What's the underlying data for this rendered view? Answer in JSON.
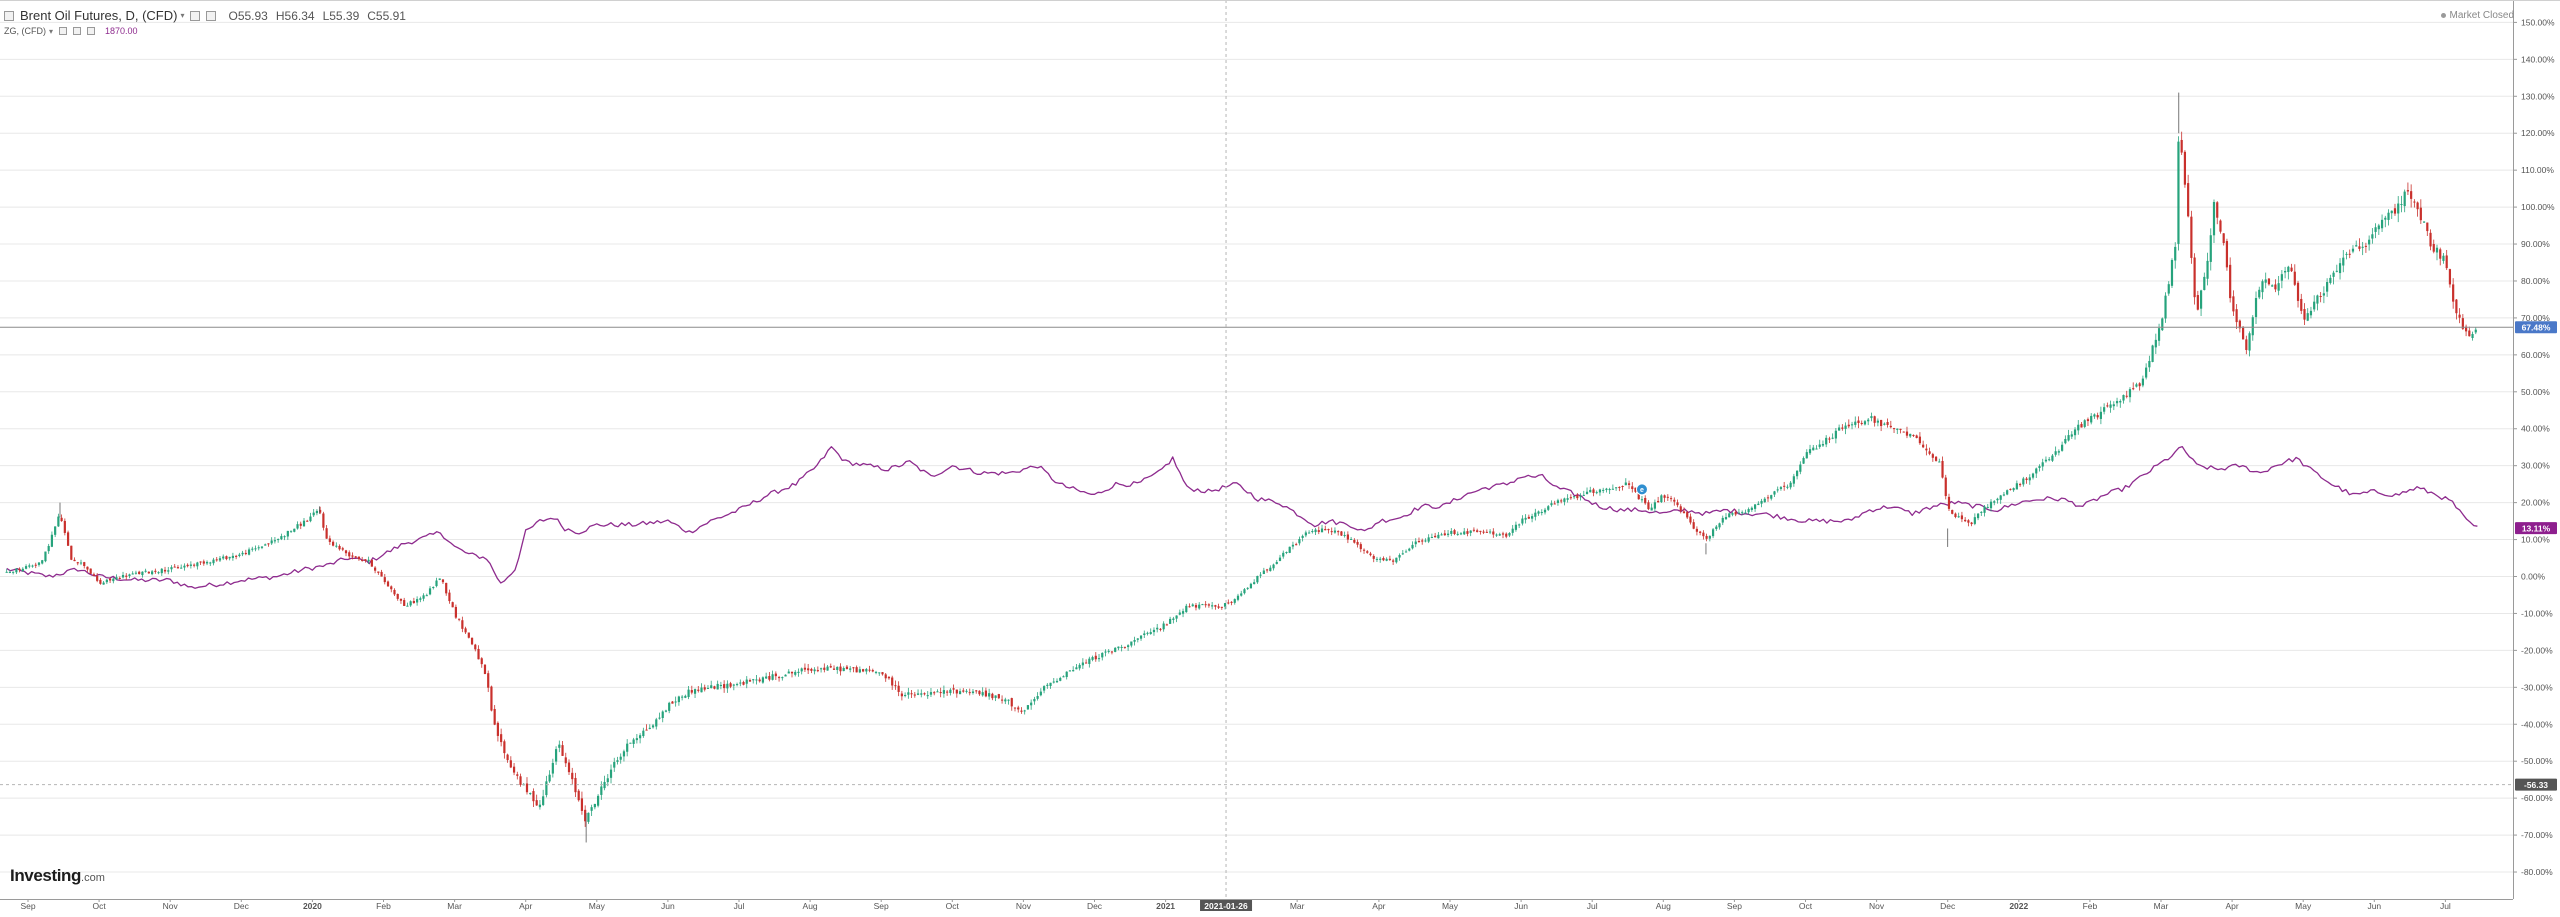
{
  "header": {
    "symbol": "Brent Oil Futures, D, (CFD)",
    "open": "O55.93",
    "high": "H56.34",
    "low": "L55.39",
    "close": "C55.91",
    "compare_symbol": "ZG, (CFD)",
    "compare_value": "1870.00"
  },
  "market_status": "Market Closed",
  "logo": {
    "name": "Investing",
    "suffix": ".com"
  },
  "colors": {
    "up": "#26a37c",
    "down": "#c9302c",
    "compare_line": "#8e2b8e",
    "last_badge": "#4a78c8",
    "compare_badge": "#8e1f8e",
    "crosshair_badge": "#555555",
    "grid": "#e8e8e8"
  },
  "crosshair": {
    "date_label": "2021-01-26",
    "value_label": "-56.33"
  },
  "price_badges": {
    "last_value": "67.48%",
    "compare_value": "13.11%"
  },
  "chart_data": {
    "type": "line",
    "title": "Brent Oil Futures, D, (CFD)",
    "xlabel": "",
    "ylabel": "",
    "y_unit": "%",
    "ylim": [
      -86,
      155
    ],
    "grid": true,
    "legend_position": "top-left",
    "y_ticks": [
      {
        "v": 150,
        "label": "150.00%"
      },
      {
        "v": 140,
        "label": "140.00%"
      },
      {
        "v": 130,
        "label": "130.00%"
      },
      {
        "v": 120,
        "label": "120.00%"
      },
      {
        "v": 110,
        "label": "110.00%"
      },
      {
        "v": 100,
        "label": "100.00%"
      },
      {
        "v": 90,
        "label": "90.00%"
      },
      {
        "v": 80,
        "label": "80.00%"
      },
      {
        "v": 70,
        "label": "70.00%"
      },
      {
        "v": 60,
        "label": "60.00%"
      },
      {
        "v": 50,
        "label": "50.00%"
      },
      {
        "v": 40,
        "label": "40.00%"
      },
      {
        "v": 30,
        "label": "30.00%"
      },
      {
        "v": 20,
        "label": "20.00%"
      },
      {
        "v": 10,
        "label": "10.00%"
      },
      {
        "v": 0,
        "label": "0.00%"
      },
      {
        "v": -10,
        "label": "-10.00%"
      },
      {
        "v": -20,
        "label": "-20.00%"
      },
      {
        "v": -30,
        "label": "-30.00%"
      },
      {
        "v": -40,
        "label": "-40.00%"
      },
      {
        "v": -50,
        "label": "-50.00%"
      },
      {
        "v": -60,
        "label": "-60.00%"
      },
      {
        "v": -70,
        "label": "-70.00%"
      },
      {
        "v": -80,
        "label": "-80.00%"
      }
    ],
    "x_ticks": [
      {
        "m": 0.0,
        "label": "Sep"
      },
      {
        "m": 1.0,
        "label": "Oct"
      },
      {
        "m": 2.0,
        "label": "Nov"
      },
      {
        "m": 3.0,
        "label": "Dec"
      },
      {
        "m": 4.0,
        "label": "2020",
        "bold": true
      },
      {
        "m": 5.0,
        "label": "Feb"
      },
      {
        "m": 6.0,
        "label": "Mar"
      },
      {
        "m": 7.0,
        "label": "Apr"
      },
      {
        "m": 8.0,
        "label": "May"
      },
      {
        "m": 9.0,
        "label": "Jun"
      },
      {
        "m": 10.0,
        "label": "Jul"
      },
      {
        "m": 11.0,
        "label": "Aug"
      },
      {
        "m": 12.0,
        "label": "Sep"
      },
      {
        "m": 13.0,
        "label": "Oct"
      },
      {
        "m": 14.0,
        "label": "Nov"
      },
      {
        "m": 15.0,
        "label": "Dec"
      },
      {
        "m": 16.0,
        "label": "2021",
        "bold": true
      },
      {
        "m": 17.85,
        "label": "Mar"
      },
      {
        "m": 19.0,
        "label": "Apr"
      },
      {
        "m": 20.0,
        "label": "May"
      },
      {
        "m": 21.0,
        "label": "Jun"
      },
      {
        "m": 22.0,
        "label": "Jul"
      },
      {
        "m": 23.0,
        "label": "Aug"
      },
      {
        "m": 24.0,
        "label": "Sep"
      },
      {
        "m": 25.0,
        "label": "Oct"
      },
      {
        "m": 26.0,
        "label": "Nov"
      },
      {
        "m": 27.0,
        "label": "Dec"
      },
      {
        "m": 28.0,
        "label": "2022",
        "bold": true
      },
      {
        "m": 29.0,
        "label": "Feb"
      },
      {
        "m": 30.0,
        "label": "Mar"
      },
      {
        "m": 31.0,
        "label": "Apr"
      },
      {
        "m": 32.0,
        "label": "May"
      },
      {
        "m": 33.0,
        "label": "Jun"
      },
      {
        "m": 34.0,
        "label": "Jul"
      }
    ],
    "x_range": [
      -0.3,
      34.5
    ],
    "crosshair_x": 16.85,
    "crosshair_y": -56.33,
    "last_value": 67.48,
    "series": [
      {
        "name": "Brent Oil Futures, D, (CFD)",
        "style": "candlestick",
        "points": [
          [
            -0.3,
            1
          ],
          [
            0.2,
            4
          ],
          [
            0.45,
            17
          ],
          [
            0.6,
            5
          ],
          [
            0.8,
            3
          ],
          [
            1.0,
            -2
          ],
          [
            1.3,
            0
          ],
          [
            1.6,
            1
          ],
          [
            2.0,
            2
          ],
          [
            2.5,
            4
          ],
          [
            3.0,
            6
          ],
          [
            3.5,
            10
          ],
          [
            3.9,
            15
          ],
          [
            4.1,
            18
          ],
          [
            4.2,
            10
          ],
          [
            4.5,
            6
          ],
          [
            4.8,
            4
          ],
          [
            5.0,
            -1
          ],
          [
            5.3,
            -8
          ],
          [
            5.6,
            -5
          ],
          [
            5.8,
            0
          ],
          [
            6.0,
            -10
          ],
          [
            6.3,
            -20
          ],
          [
            6.45,
            -28
          ],
          [
            6.55,
            -40
          ],
          [
            6.75,
            -50
          ],
          [
            7.0,
            -58
          ],
          [
            7.2,
            -62
          ],
          [
            7.45,
            -45
          ],
          [
            7.7,
            -58
          ],
          [
            7.85,
            -66
          ],
          [
            8.0,
            -60
          ],
          [
            8.2,
            -52
          ],
          [
            8.5,
            -44
          ],
          [
            8.8,
            -40
          ],
          [
            9.0,
            -35
          ],
          [
            9.3,
            -31
          ],
          [
            9.6,
            -30
          ],
          [
            10.0,
            -29
          ],
          [
            10.5,
            -27
          ],
          [
            11.0,
            -25
          ],
          [
            11.5,
            -25
          ],
          [
            12.0,
            -26
          ],
          [
            12.3,
            -32
          ],
          [
            12.6,
            -32
          ],
          [
            13.0,
            -31
          ],
          [
            13.3,
            -31
          ],
          [
            13.8,
            -34
          ],
          [
            14.0,
            -37
          ],
          [
            14.3,
            -30
          ],
          [
            14.6,
            -26
          ],
          [
            15.0,
            -22
          ],
          [
            15.5,
            -18
          ],
          [
            16.0,
            -13
          ],
          [
            16.3,
            -8
          ],
          [
            16.8,
            -8
          ],
          [
            17.0,
            -6
          ],
          [
            17.3,
            0
          ],
          [
            17.6,
            5
          ],
          [
            18.0,
            12
          ],
          [
            18.3,
            13
          ],
          [
            18.6,
            10
          ],
          [
            18.9,
            5
          ],
          [
            19.2,
            4
          ],
          [
            19.5,
            9
          ],
          [
            20.0,
            12
          ],
          [
            20.5,
            12
          ],
          [
            20.8,
            11
          ],
          [
            21.0,
            15
          ],
          [
            21.5,
            20
          ],
          [
            22.0,
            23
          ],
          [
            22.5,
            25
          ],
          [
            22.8,
            18
          ],
          [
            23.0,
            22
          ],
          [
            23.2,
            19
          ],
          [
            23.4,
            14
          ],
          [
            23.6,
            10
          ],
          [
            23.9,
            17
          ],
          [
            24.2,
            18
          ],
          [
            24.5,
            22
          ],
          [
            24.8,
            25
          ],
          [
            25.0,
            33
          ],
          [
            25.5,
            40
          ],
          [
            25.9,
            43
          ],
          [
            26.2,
            40
          ],
          [
            26.6,
            37
          ],
          [
            26.9,
            30
          ],
          [
            27.0,
            18
          ],
          [
            27.3,
            14
          ],
          [
            27.6,
            20
          ],
          [
            28.0,
            25
          ],
          [
            28.5,
            33
          ],
          [
            28.8,
            40
          ],
          [
            29.2,
            45
          ],
          [
            29.7,
            52
          ],
          [
            30.0,
            68
          ],
          [
            30.2,
            90
          ],
          [
            30.25,
            120
          ],
          [
            30.35,
            105
          ],
          [
            30.5,
            70
          ],
          [
            30.65,
            85
          ],
          [
            30.75,
            102
          ],
          [
            30.9,
            88
          ],
          [
            31.0,
            72
          ],
          [
            31.2,
            62
          ],
          [
            31.4,
            80
          ],
          [
            31.6,
            78
          ],
          [
            31.8,
            85
          ],
          [
            32.0,
            70
          ],
          [
            32.3,
            78
          ],
          [
            32.6,
            88
          ],
          [
            32.9,
            90
          ],
          [
            33.1,
            97
          ],
          [
            33.3,
            98
          ],
          [
            33.45,
            105
          ],
          [
            33.6,
            100
          ],
          [
            33.8,
            90
          ],
          [
            34.0,
            85
          ],
          [
            34.1,
            75
          ],
          [
            34.3,
            65
          ],
          [
            34.45,
            67.48
          ]
        ]
      },
      {
        "name": "ZG, (CFD)",
        "style": "line",
        "points": [
          [
            -0.3,
            2
          ],
          [
            0.3,
            0
          ],
          [
            0.7,
            2
          ],
          [
            1.0,
            0
          ],
          [
            1.5,
            -1
          ],
          [
            2.0,
            -1
          ],
          [
            2.3,
            -3
          ],
          [
            2.7,
            -2
          ],
          [
            3.0,
            -1
          ],
          [
            3.5,
            0
          ],
          [
            3.9,
            2
          ],
          [
            4.2,
            3
          ],
          [
            4.5,
            5
          ],
          [
            4.8,
            4
          ],
          [
            5.0,
            6
          ],
          [
            5.3,
            9
          ],
          [
            5.5,
            10
          ],
          [
            5.8,
            12
          ],
          [
            6.0,
            8
          ],
          [
            6.2,
            6
          ],
          [
            6.45,
            5
          ],
          [
            6.65,
            -2
          ],
          [
            6.85,
            2
          ],
          [
            7.0,
            12
          ],
          [
            7.2,
            15
          ],
          [
            7.4,
            16
          ],
          [
            7.55,
            13
          ],
          [
            7.75,
            12
          ],
          [
            8.0,
            14
          ],
          [
            8.5,
            14
          ],
          [
            9.0,
            15
          ],
          [
            9.3,
            12
          ],
          [
            9.6,
            15
          ],
          [
            10.0,
            18
          ],
          [
            10.4,
            22
          ],
          [
            10.8,
            25
          ],
          [
            11.1,
            30
          ],
          [
            11.3,
            35
          ],
          [
            11.5,
            31
          ],
          [
            11.8,
            30
          ],
          [
            12.1,
            29
          ],
          [
            12.4,
            31
          ],
          [
            12.7,
            27
          ],
          [
            13.0,
            30
          ],
          [
            13.4,
            28
          ],
          [
            13.8,
            28
          ],
          [
            14.2,
            30
          ],
          [
            14.5,
            25
          ],
          [
            14.8,
            23
          ],
          [
            15.0,
            22
          ],
          [
            15.3,
            25
          ],
          [
            15.6,
            25
          ],
          [
            15.9,
            28
          ],
          [
            16.1,
            32
          ],
          [
            16.3,
            24
          ],
          [
            16.6,
            23
          ],
          [
            17.0,
            25
          ],
          [
            17.3,
            21
          ],
          [
            17.6,
            20
          ],
          [
            17.85,
            17
          ],
          [
            18.1,
            14
          ],
          [
            18.3,
            15
          ],
          [
            18.6,
            14
          ],
          [
            18.8,
            12
          ],
          [
            19.0,
            15
          ],
          [
            19.3,
            16
          ],
          [
            19.6,
            19
          ],
          [
            19.9,
            19
          ],
          [
            20.2,
            22
          ],
          [
            20.5,
            24
          ],
          [
            20.8,
            25
          ],
          [
            21.0,
            27
          ],
          [
            21.3,
            27
          ],
          [
            21.5,
            24
          ],
          [
            21.8,
            22
          ],
          [
            22.1,
            19
          ],
          [
            22.4,
            18
          ],
          [
            22.7,
            18
          ],
          [
            23.0,
            17
          ],
          [
            23.3,
            18
          ],
          [
            23.6,
            17
          ],
          [
            23.9,
            18
          ],
          [
            24.2,
            17
          ],
          [
            24.4,
            17
          ],
          [
            24.7,
            16
          ],
          [
            25.0,
            15
          ],
          [
            25.3,
            15
          ],
          [
            25.6,
            15
          ],
          [
            25.9,
            18
          ],
          [
            26.2,
            19
          ],
          [
            26.5,
            17
          ],
          [
            26.8,
            19
          ],
          [
            27.1,
            20
          ],
          [
            27.4,
            19
          ],
          [
            27.7,
            18
          ],
          [
            28.0,
            20
          ],
          [
            28.3,
            21
          ],
          [
            28.6,
            21
          ],
          [
            28.9,
            19
          ],
          [
            29.2,
            22
          ],
          [
            29.5,
            24
          ],
          [
            29.8,
            28
          ],
          [
            30.1,
            32
          ],
          [
            30.3,
            35
          ],
          [
            30.5,
            30
          ],
          [
            30.8,
            29
          ],
          [
            31.1,
            30
          ],
          [
            31.4,
            28
          ],
          [
            31.6,
            30
          ],
          [
            31.9,
            32
          ],
          [
            32.1,
            29
          ],
          [
            32.4,
            25
          ],
          [
            32.7,
            22
          ],
          [
            33.0,
            23
          ],
          [
            33.3,
            22
          ],
          [
            33.6,
            24
          ],
          [
            33.9,
            22
          ],
          [
            34.1,
            20
          ],
          [
            34.3,
            15
          ],
          [
            34.45,
            13.11
          ]
        ]
      }
    ],
    "annotations": [
      {
        "type": "event-marker",
        "at": 22.7
      }
    ]
  }
}
